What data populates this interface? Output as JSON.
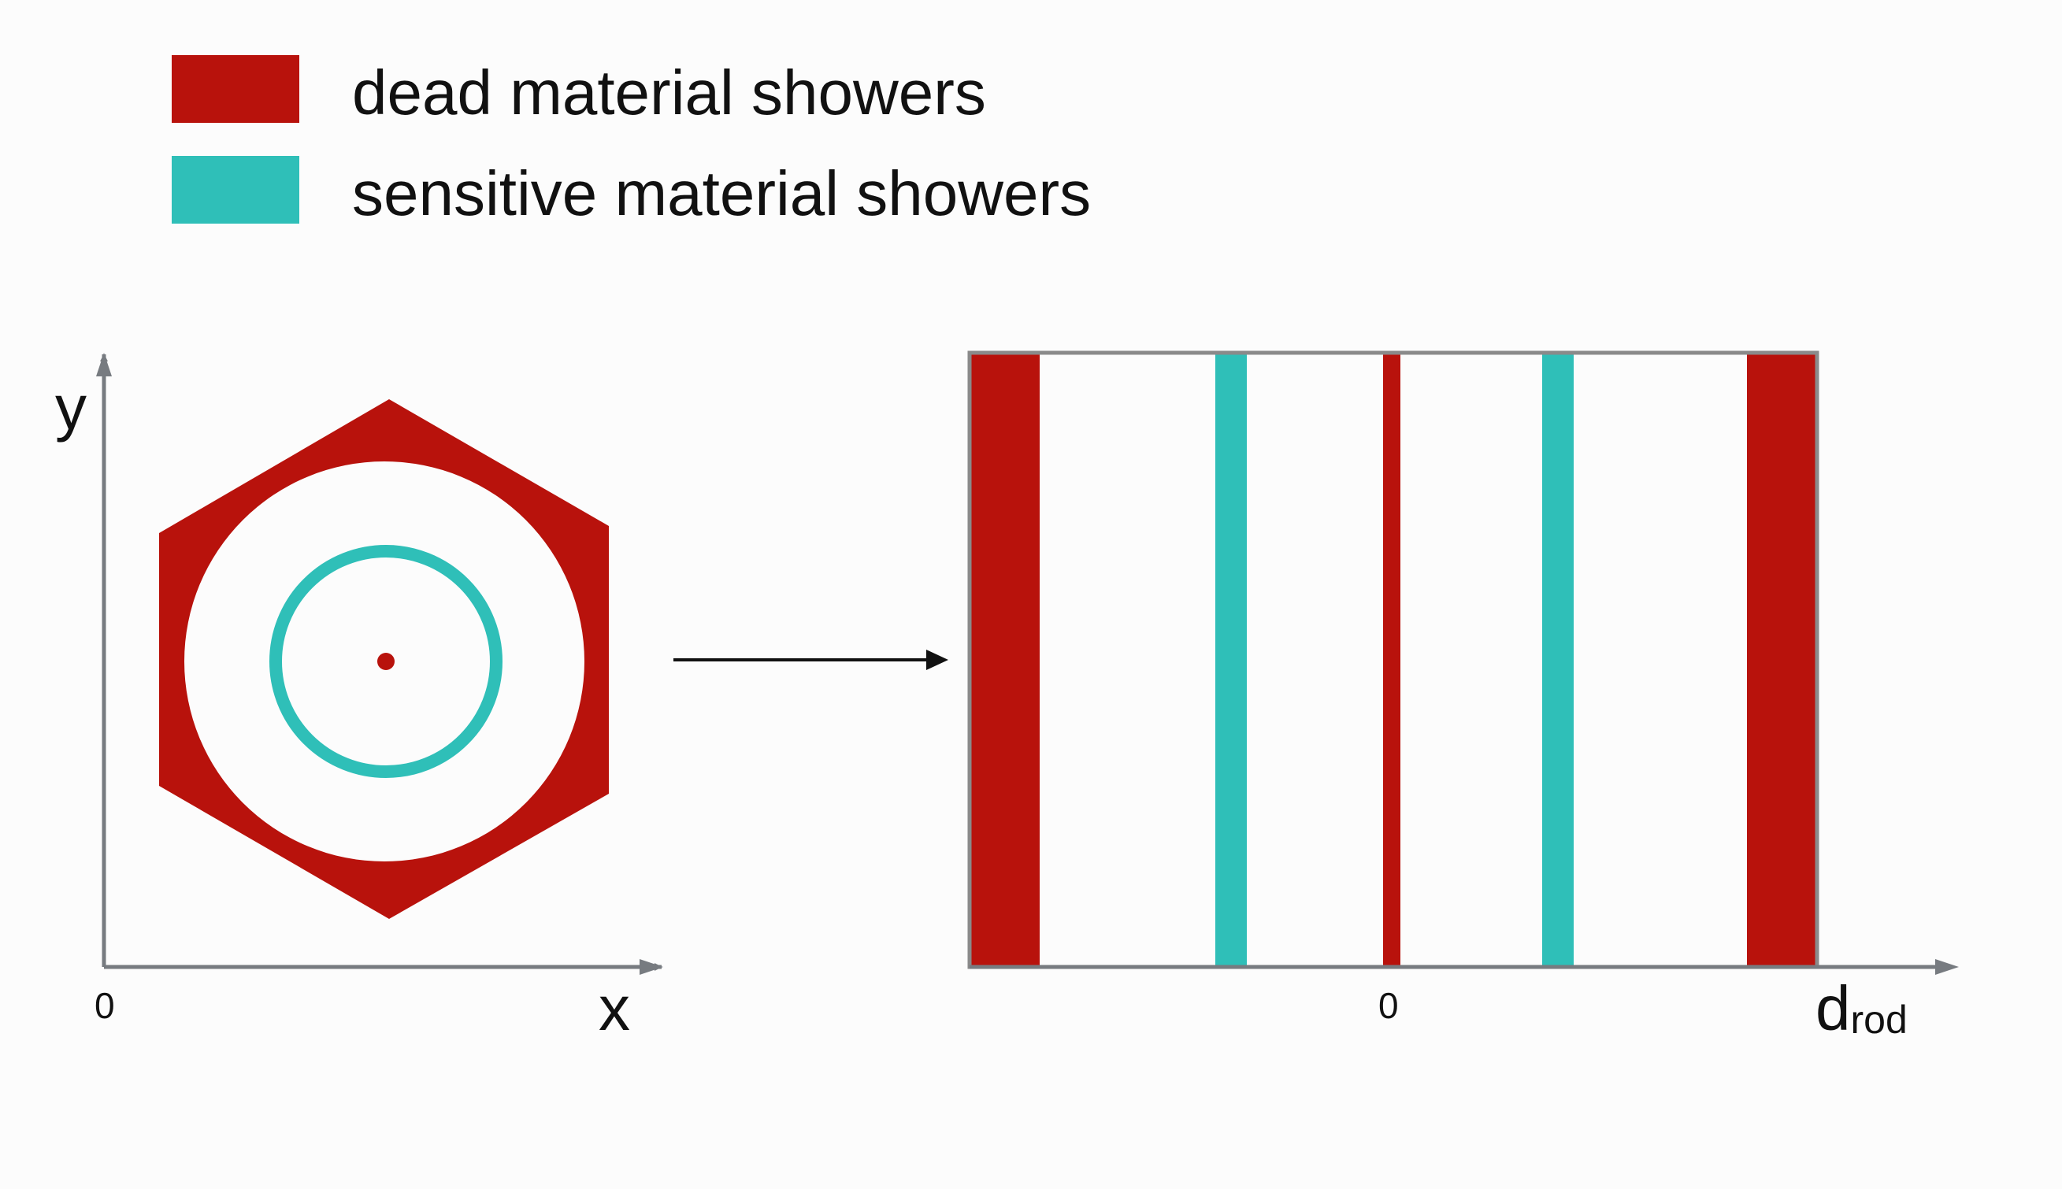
{
  "colors": {
    "dead": "#b8120c",
    "sensitive": "#2fbfb8",
    "axis": "#777b80",
    "frame": "#8a8a8a",
    "arrow": "#111111",
    "background": "#fcfcfc"
  },
  "legend": {
    "items": [
      {
        "label": "dead material showers",
        "color_key": "dead"
      },
      {
        "label": "sensitive material showers",
        "color_key": "sensitive"
      }
    ]
  },
  "left_panel": {
    "x_axis_label": "x",
    "y_axis_label": "y",
    "origin_label": "0"
  },
  "right_panel": {
    "zero_label": "0",
    "axis_label_main": "d",
    "axis_label_sub": "rod"
  }
}
